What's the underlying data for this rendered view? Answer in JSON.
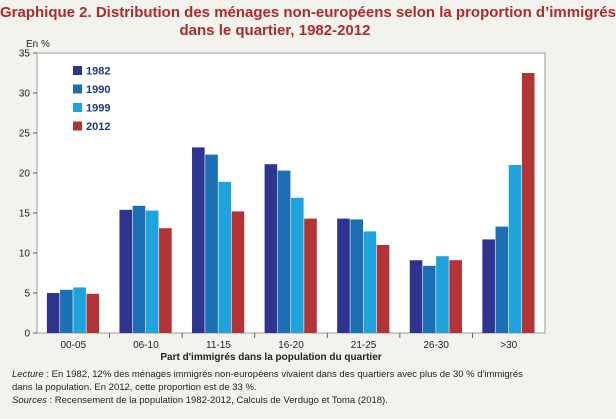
{
  "title_line1": "Graphique 2. Distribution des ménages non-européens selon la proportion d’immigrés",
  "title_line2": "dans le quartier, 1982-2012",
  "notes": {
    "lecture_label": "Lecture",
    "lecture_text": " : En 1982, 12% des ménages immigrés non-européens vivaient dans des quartiers avec plus de 30 % d'immigrés",
    "lecture_text2": "dans la population. En 2012, cette proportion est de 33 %.",
    "sources_label": "Sources",
    "sources_text": " : Recensement de la population 1982-2012, Calculs de Verdugo et Toma (2018)."
  },
  "chart_data": {
    "type": "bar",
    "ylabel": "En %",
    "xlabel": "Part d'immigrés dans la population du quartier",
    "ylim": [
      0,
      35
    ],
    "yticks": [
      0,
      5,
      10,
      15,
      20,
      25,
      30,
      35
    ],
    "categories": [
      "00-05",
      "06-10",
      "11-15",
      "16-20",
      "21-25",
      "26-30",
      ">30"
    ],
    "legend_position": "top-left",
    "series": [
      {
        "name": "1982",
        "color": "#2e3591",
        "values": [
          5.0,
          15.4,
          23.2,
          21.1,
          14.3,
          9.1,
          11.7
        ]
      },
      {
        "name": "1990",
        "color": "#1a6fb5",
        "values": [
          5.4,
          15.9,
          22.3,
          20.3,
          14.2,
          8.4,
          13.3
        ]
      },
      {
        "name": "1999",
        "color": "#1ea3dc",
        "values": [
          5.7,
          15.3,
          18.9,
          16.9,
          12.7,
          9.6,
          21.0
        ]
      },
      {
        "name": "2012",
        "color": "#b23434",
        "values": [
          4.9,
          13.1,
          15.2,
          14.3,
          11.0,
          9.1,
          32.5
        ]
      }
    ]
  }
}
